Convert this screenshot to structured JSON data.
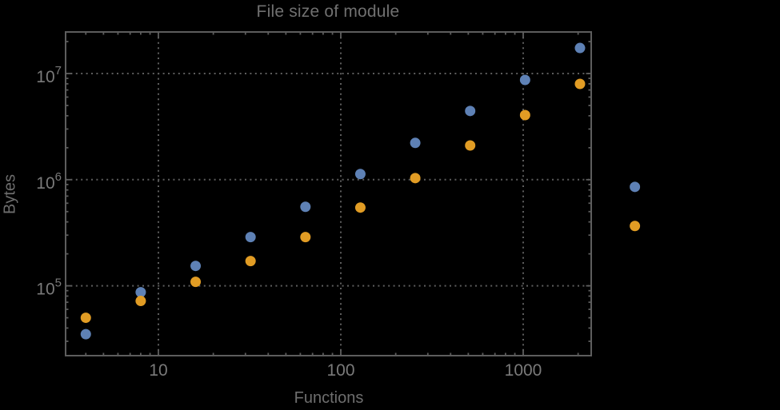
{
  "title": "File size of module",
  "colors": {
    "background": "#000000",
    "frame": "#5d5d5d",
    "grid": "#5d5d5d",
    "tick_label": "#7a7a7a",
    "title": "#707070",
    "axis_label": "#6e6e6e",
    "series_blue": "#5E81B5",
    "series_orange": "#E19C24"
  },
  "chart_data": {
    "type": "scatter",
    "title": "File size of module",
    "xlabel": "Functions",
    "ylabel": "Bytes",
    "xscale": "log",
    "yscale": "log",
    "xlim": [
      3.1,
      2360
    ],
    "ylim": [
      21500,
      24600000
    ],
    "grid": "dotted gray lines at powers of 10",
    "legend": "none",
    "marker": "filled circle, radius 6.5px",
    "note": "last pair of points (x=4096) is drawn outside the right edge of the frame",
    "x": [
      4,
      8,
      16,
      32,
      64,
      128,
      256,
      512,
      1024,
      2048,
      4096
    ],
    "series": [
      {
        "name": "blue",
        "color": "#5E81B5",
        "values": [
          35000,
          87000,
          154000,
          288000,
          555000,
          1130000,
          2220000,
          4440000,
          8700000,
          17400000,
          855000
        ]
      },
      {
        "name": "orange",
        "color": "#E19C24",
        "values": [
          50000,
          72000,
          109000,
          171000,
          288000,
          546000,
          1035000,
          2100000,
          4060000,
          7980000,
          366000
        ]
      }
    ],
    "x_ticks": [
      {
        "value": 10,
        "label": "10"
      },
      {
        "value": 100,
        "label": "100"
      },
      {
        "value": 1000,
        "label": "1000"
      }
    ],
    "y_ticks": [
      {
        "value": 100000,
        "base": "10",
        "exp": "5"
      },
      {
        "value": 1000000,
        "base": "10",
        "exp": "6"
      },
      {
        "value": 10000000,
        "base": "10",
        "exp": "7"
      }
    ]
  }
}
